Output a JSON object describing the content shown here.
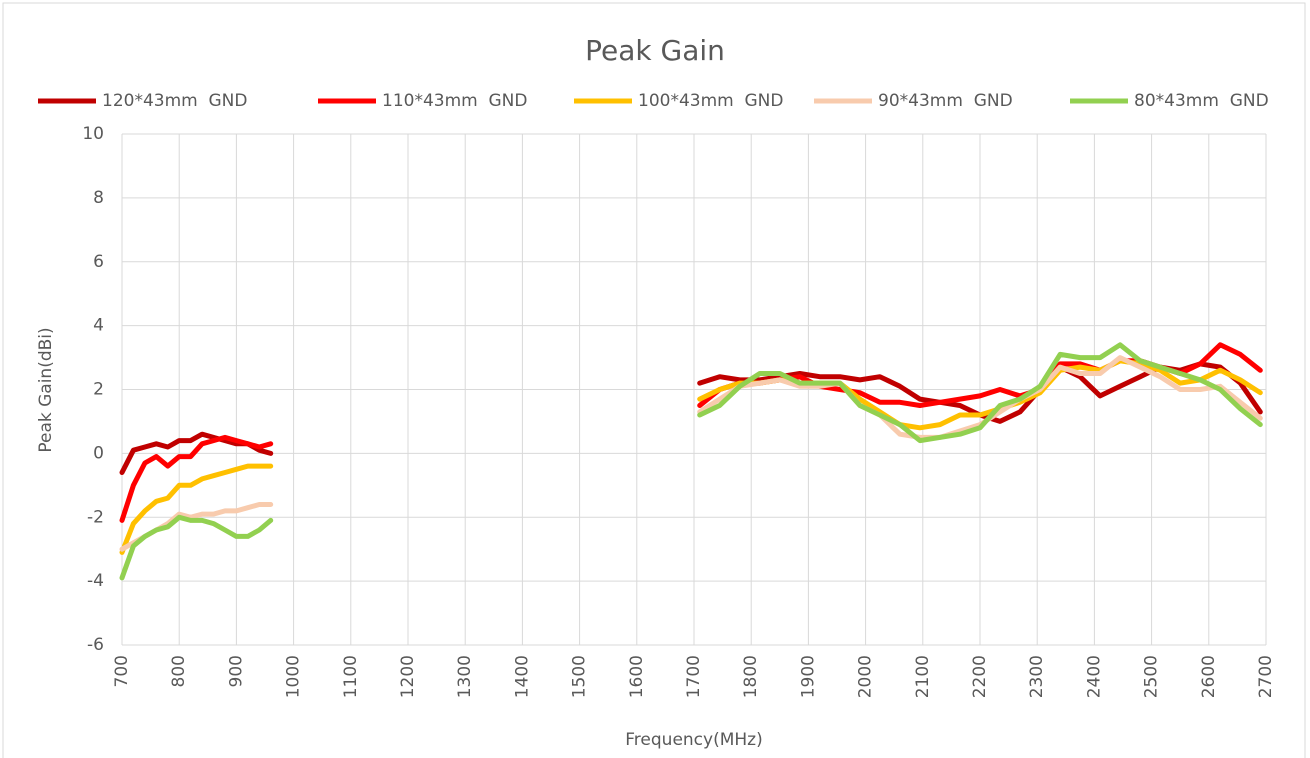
{
  "chart_data": {
    "type": "line",
    "title": "Peak Gain",
    "x_label": "Frequency(MHz)",
    "y_label": "Peak Gain(dBi)",
    "x": [
      700,
      720,
      740,
      760,
      780,
      800,
      820,
      840,
      860,
      880,
      900,
      920,
      940,
      960,
      980,
      1710,
      1745,
      1780,
      1815,
      1850,
      1885,
      1920,
      1955,
      1990,
      2025,
      2060,
      2095,
      2130,
      2165,
      2200,
      2235,
      2270,
      2305,
      2340,
      2375,
      2410,
      2445,
      2480,
      2515,
      2550,
      2585,
      2620,
      2655,
      2690
    ],
    "series": [
      {
        "name": "120*43mm  GND",
        "color": "#c00000",
        "values": [
          -0.6,
          0.1,
          0.2,
          0.3,
          0.2,
          0.4,
          0.4,
          0.6,
          0.5,
          0.4,
          0.3,
          0.3,
          0.1,
          0.0,
          null,
          2.2,
          2.4,
          2.3,
          2.3,
          2.4,
          2.5,
          2.4,
          2.4,
          2.3,
          2.4,
          2.1,
          1.7,
          1.6,
          1.5,
          1.2,
          1.0,
          1.3,
          2.0,
          2.7,
          2.4,
          1.8,
          2.1,
          2.4,
          2.7,
          2.6,
          2.8,
          2.7,
          2.2,
          1.3
        ]
      },
      {
        "name": "110*43mm  GND",
        "color": "#ff0000",
        "values": [
          -2.1,
          -1.0,
          -0.3,
          -0.1,
          -0.4,
          -0.1,
          -0.1,
          0.3,
          0.4,
          0.5,
          0.4,
          0.3,
          0.2,
          0.3,
          null,
          1.5,
          2.0,
          2.2,
          2.2,
          2.3,
          2.4,
          2.1,
          2.0,
          1.9,
          1.6,
          1.6,
          1.5,
          1.6,
          1.7,
          1.8,
          2.0,
          1.8,
          2.0,
          2.8,
          2.8,
          2.6,
          2.9,
          2.9,
          2.7,
          2.5,
          2.8,
          3.4,
          3.1,
          2.6
        ]
      },
      {
        "name": "100*43mm  GND",
        "color": "#ffc000",
        "values": [
          -3.1,
          -2.2,
          -1.8,
          -1.5,
          -1.4,
          -1.0,
          -1.0,
          -0.8,
          -0.7,
          -0.6,
          -0.5,
          -0.4,
          -0.4,
          -0.4,
          null,
          1.7,
          2.0,
          2.2,
          2.2,
          2.3,
          2.2,
          2.2,
          2.2,
          1.7,
          1.3,
          0.9,
          0.8,
          0.9,
          1.2,
          1.2,
          1.4,
          1.6,
          1.9,
          2.6,
          2.7,
          2.6,
          2.9,
          2.8,
          2.6,
          2.2,
          2.3,
          2.6,
          2.3,
          1.9
        ]
      },
      {
        "name": "90*43mm  GND",
        "color": "#f8cbad",
        "values": [
          -3.0,
          -2.8,
          -2.6,
          -2.4,
          -2.2,
          -1.9,
          -2.0,
          -1.9,
          -1.9,
          -1.8,
          -1.8,
          -1.7,
          -1.6,
          -1.6,
          null,
          1.3,
          1.7,
          2.1,
          2.2,
          2.3,
          2.1,
          2.1,
          2.2,
          1.5,
          1.2,
          0.6,
          0.5,
          0.5,
          0.7,
          0.9,
          1.3,
          1.7,
          2.0,
          2.7,
          2.5,
          2.5,
          3.0,
          2.7,
          2.4,
          2.0,
          2.0,
          2.1,
          1.6,
          1.1
        ]
      },
      {
        "name": "80*43mm  GND",
        "color": "#92d050",
        "values": [
          -3.9,
          -2.9,
          -2.6,
          -2.4,
          -2.3,
          -2.0,
          -2.1,
          -2.1,
          -2.2,
          -2.4,
          -2.6,
          -2.6,
          -2.4,
          -2.1,
          null,
          1.2,
          1.5,
          2.1,
          2.5,
          2.5,
          2.2,
          2.2,
          2.2,
          1.5,
          1.2,
          0.9,
          0.4,
          0.5,
          0.6,
          0.8,
          1.5,
          1.7,
          2.1,
          3.1,
          3.0,
          3.0,
          3.4,
          2.9,
          2.7,
          2.5,
          2.3,
          2.0,
          1.4,
          0.9
        ]
      }
    ],
    "xlim": [
      700,
      2700
    ],
    "xticks": [
      700,
      800,
      900,
      1000,
      1100,
      1200,
      1300,
      1400,
      1500,
      1600,
      1700,
      1800,
      1900,
      2000,
      2100,
      2200,
      2300,
      2400,
      2500,
      2600,
      2700
    ],
    "ylim": [
      -6,
      10
    ],
    "yticks": [
      -6,
      -4,
      -2,
      0,
      2,
      4,
      6,
      8,
      10
    ],
    "grid": true,
    "legend": "top"
  }
}
